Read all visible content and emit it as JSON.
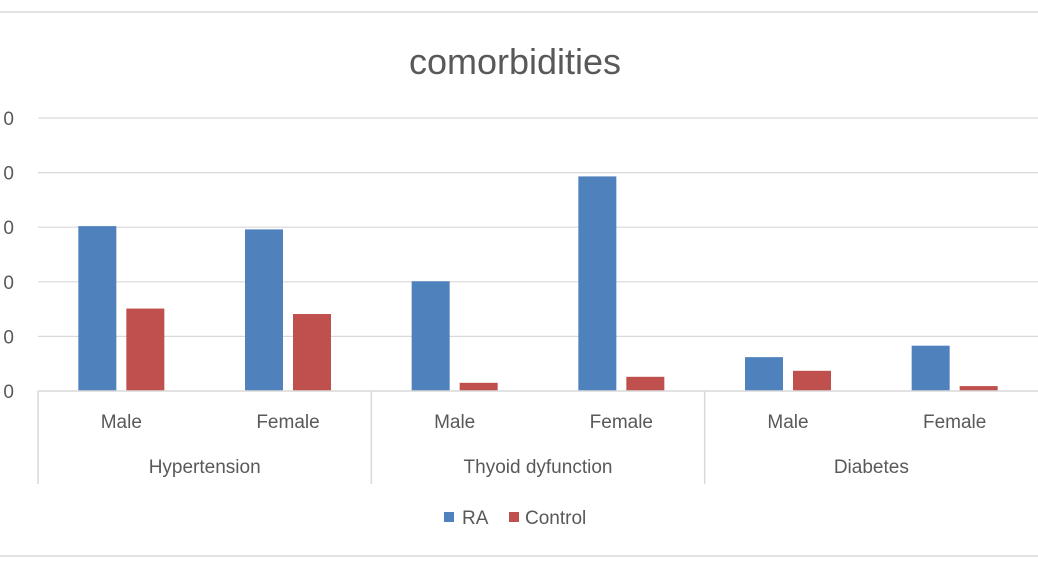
{
  "chart_data": {
    "type": "bar",
    "title": "comorbidities",
    "groups": [
      {
        "label": "Hypertension",
        "categories": [
          "Male",
          "Female"
        ]
      },
      {
        "label": "Thyoid dyfunction",
        "categories": [
          "Male",
          "Female"
        ]
      },
      {
        "label": "Diabetes",
        "categories": [
          "Male",
          "Female"
        ]
      }
    ],
    "categories": [
      "Male",
      "Female",
      "Male",
      "Female",
      "Male",
      "Female"
    ],
    "series": [
      {
        "name": "RA",
        "color": "#4F81BD",
        "values": [
          30.2,
          29.6,
          20.1,
          39.3,
          6.2,
          8.3
        ]
      },
      {
        "name": "Control",
        "color": "#C0504D",
        "values": [
          15.1,
          14.1,
          1.5,
          2.6,
          3.7,
          0.9
        ]
      }
    ],
    "yticks": [
      "0",
      "0",
      "0",
      "0",
      "0",
      "0"
    ],
    "ylim": [
      0,
      50
    ],
    "grid": true,
    "legend_position": "bottom"
  }
}
